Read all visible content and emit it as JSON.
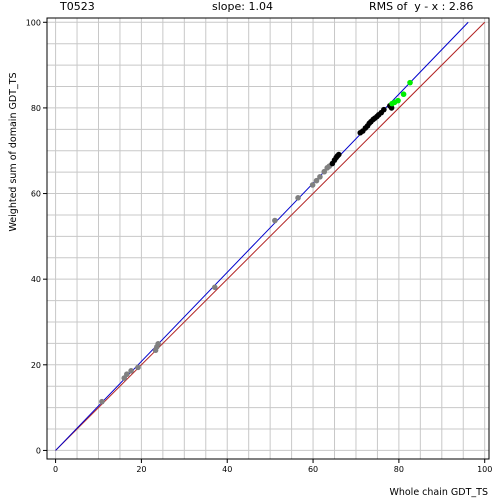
{
  "header": {
    "target": "T0523",
    "slope": "slope: 1.04",
    "rms": "RMS of  y - x : 2.86"
  },
  "chart_data": {
    "type": "scatter",
    "xlabel": "Whole chain GDT_TS",
    "ylabel": "Weighted sum of domain GDT_TS",
    "xlim": [
      -2,
      101
    ],
    "ylim": [
      -2,
      101
    ],
    "xticks": [
      0,
      20,
      40,
      60,
      80,
      100
    ],
    "yticks": [
      0,
      20,
      40,
      60,
      80,
      100
    ],
    "grid": true,
    "lines": [
      {
        "label": "y = x",
        "color": "#b22222",
        "slope": 1.0,
        "intercept": 0
      },
      {
        "label": "fit",
        "color": "#0000cc",
        "slope": 1.04,
        "intercept": 0
      }
    ],
    "series": [
      {
        "color": "#808080",
        "points": [
          [
            10.8,
            11.4
          ],
          [
            16.0,
            16.9
          ],
          [
            16.6,
            17.8
          ],
          [
            17.6,
            18.6
          ],
          [
            19.2,
            19.4
          ],
          [
            23.3,
            23.4
          ],
          [
            23.6,
            24.2
          ],
          [
            23.9,
            24.9
          ],
          [
            37.1,
            38.1
          ],
          [
            51.1,
            53.7
          ],
          [
            56.5,
            59.0
          ],
          [
            59.9,
            62.0
          ],
          [
            60.8,
            63.0
          ],
          [
            61.6,
            63.9
          ],
          [
            62.6,
            65.1
          ],
          [
            63.3,
            66.0
          ],
          [
            63.8,
            66.4
          ]
        ]
      },
      {
        "color": "#000000",
        "points": [
          [
            64.5,
            67.0
          ],
          [
            65.0,
            67.8
          ],
          [
            65.4,
            68.4
          ],
          [
            65.7,
            68.8
          ],
          [
            66.0,
            69.1
          ],
          [
            71.0,
            74.2
          ],
          [
            71.6,
            74.6
          ],
          [
            72.2,
            75.3
          ],
          [
            72.7,
            75.8
          ],
          [
            73.1,
            76.4
          ],
          [
            73.5,
            76.8
          ],
          [
            74.0,
            77.3
          ],
          [
            74.4,
            77.6
          ],
          [
            74.9,
            78.0
          ],
          [
            75.3,
            78.4
          ],
          [
            75.9,
            78.9
          ],
          [
            76.5,
            79.6
          ],
          [
            77.9,
            80.5
          ],
          [
            78.3,
            80.0
          ]
        ]
      },
      {
        "color": "#00ee00",
        "points": [
          [
            78.4,
            81.0
          ],
          [
            79.0,
            81.3
          ],
          [
            79.8,
            81.7
          ],
          [
            81.1,
            83.2
          ],
          [
            82.6,
            85.9
          ]
        ]
      }
    ]
  }
}
